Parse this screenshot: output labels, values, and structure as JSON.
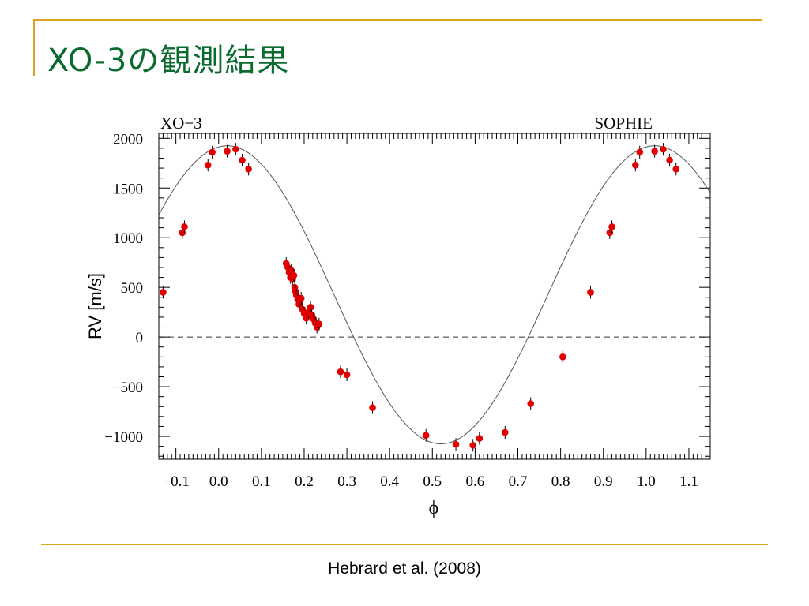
{
  "slide": {
    "title": "XO-3の観測結果",
    "citation": "Hebrard et al. (2008)"
  },
  "colors": {
    "accent": "#d9a520",
    "title": "#0b6b2f",
    "points": "#e00000"
  },
  "chart_data": {
    "type": "scatter",
    "title_left": "XO−3",
    "title_right": "SOPHIE",
    "xlabel": "ϕ",
    "ylabel": "RV [m/s]",
    "xlim": [
      -0.14,
      1.15
    ],
    "ylim": [
      -1230,
      2050
    ],
    "xticks": [
      -0.1,
      0.0,
      0.1,
      0.2,
      0.3,
      0.4,
      0.5,
      0.6,
      0.7,
      0.8,
      0.9,
      1.0,
      1.1
    ],
    "xtick_labels": [
      "−0.1",
      "0.0",
      "0.1",
      "0.2",
      "0.3",
      "0.4",
      "0.5",
      "0.6",
      "0.7",
      "0.8",
      "0.9",
      "1.0",
      "1.1"
    ],
    "yticks": [
      -1000,
      -500,
      0,
      500,
      1000,
      1500,
      2000
    ],
    "ytick_labels": [
      "−1000",
      "−500",
      "0",
      "500",
      "1000",
      "1500",
      "2000"
    ],
    "zero_line": 0,
    "model": {
      "name": "orbital fit",
      "gamma": 425,
      "amplitude": 1500,
      "peak_phase": 0.02
    },
    "series": [
      {
        "name": "SOPHIE RV",
        "points": [
          [
            -0.13,
            450
          ],
          [
            -0.085,
            1050
          ],
          [
            -0.08,
            1110
          ],
          [
            -0.025,
            1730
          ],
          [
            -0.015,
            1860
          ],
          [
            0.02,
            1870
          ],
          [
            0.04,
            1890
          ],
          [
            0.055,
            1780
          ],
          [
            0.07,
            1690
          ],
          [
            0.158,
            740
          ],
          [
            0.162,
            700
          ],
          [
            0.165,
            650
          ],
          [
            0.168,
            600
          ],
          [
            0.17,
            670
          ],
          [
            0.173,
            580
          ],
          [
            0.176,
            620
          ],
          [
            0.178,
            500
          ],
          [
            0.18,
            460
          ],
          [
            0.182,
            420
          ],
          [
            0.185,
            380
          ],
          [
            0.188,
            330
          ],
          [
            0.19,
            350
          ],
          [
            0.193,
            390
          ],
          [
            0.196,
            280
          ],
          [
            0.2,
            240
          ],
          [
            0.205,
            190
          ],
          [
            0.21,
            250
          ],
          [
            0.215,
            300
          ],
          [
            0.218,
            220
          ],
          [
            0.222,
            180
          ],
          [
            0.226,
            140
          ],
          [
            0.23,
            100
          ],
          [
            0.235,
            130
          ],
          [
            0.285,
            -350
          ],
          [
            0.3,
            -380
          ],
          [
            0.36,
            -710
          ],
          [
            0.485,
            -990
          ],
          [
            0.555,
            -1080
          ],
          [
            0.595,
            -1090
          ],
          [
            0.61,
            -1020
          ],
          [
            0.67,
            -960
          ],
          [
            0.73,
            -670
          ],
          [
            0.805,
            -200
          ],
          [
            0.87,
            450
          ],
          [
            0.915,
            1050
          ],
          [
            0.92,
            1110
          ],
          [
            0.975,
            1730
          ],
          [
            0.985,
            1860
          ],
          [
            1.02,
            1870
          ],
          [
            1.04,
            1890
          ],
          [
            1.055,
            1780
          ],
          [
            1.07,
            1690
          ]
        ]
      }
    ]
  }
}
